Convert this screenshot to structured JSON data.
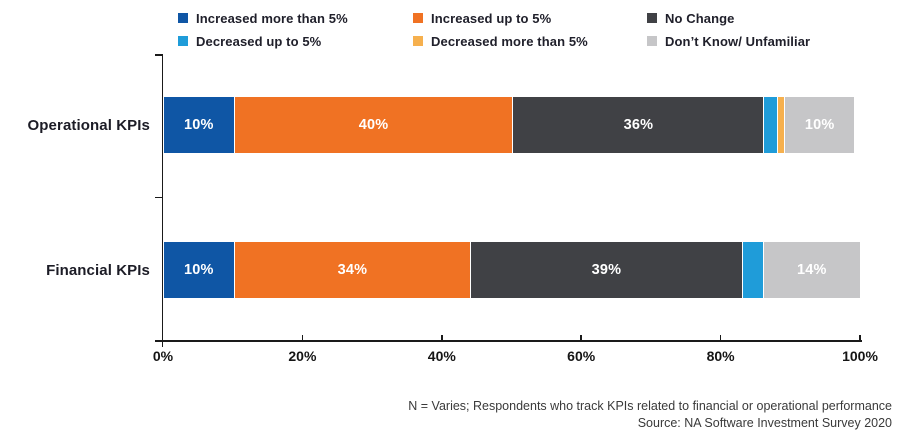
{
  "chart_data": {
    "type": "bar",
    "orientation": "horizontal",
    "stacked": true,
    "categories": [
      "Operational KPIs",
      "Financial KPIs"
    ],
    "series": [
      {
        "name": "Increased more than 5%",
        "color": "#0f56a5",
        "values": [
          10,
          10
        ]
      },
      {
        "name": "Increased up to 5%",
        "color": "#f07223",
        "values": [
          40,
          34
        ]
      },
      {
        "name": "No Change",
        "color": "#404145",
        "values": [
          36,
          39
        ]
      },
      {
        "name": "Decreased up to 5%",
        "color": "#1f9cd9",
        "values": [
          2,
          3
        ]
      },
      {
        "name": "Decreased more than 5%",
        "color": "#f6b04e",
        "values": [
          1,
          0
        ]
      },
      {
        "name": "Don’t Know/ Unfamiliar",
        "color": "#c6c6c8",
        "values": [
          10,
          14
        ]
      }
    ],
    "bar_labels": [
      [
        "10%",
        "40%",
        "36%",
        "",
        "",
        "10%"
      ],
      [
        "10%",
        "34%",
        "39%",
        "",
        "",
        "14%"
      ]
    ],
    "x_ticks": [
      "0%",
      "20%",
      "40%",
      "60%",
      "80%",
      "100%"
    ],
    "xlim": [
      0,
      100
    ],
    "grid": false,
    "legend_position": "top",
    "footnote_line1": "N = Varies; Respondents who track KPIs related to financial or operational performance",
    "footnote_line2": "Source: NA Software Investment Survey 2020"
  }
}
